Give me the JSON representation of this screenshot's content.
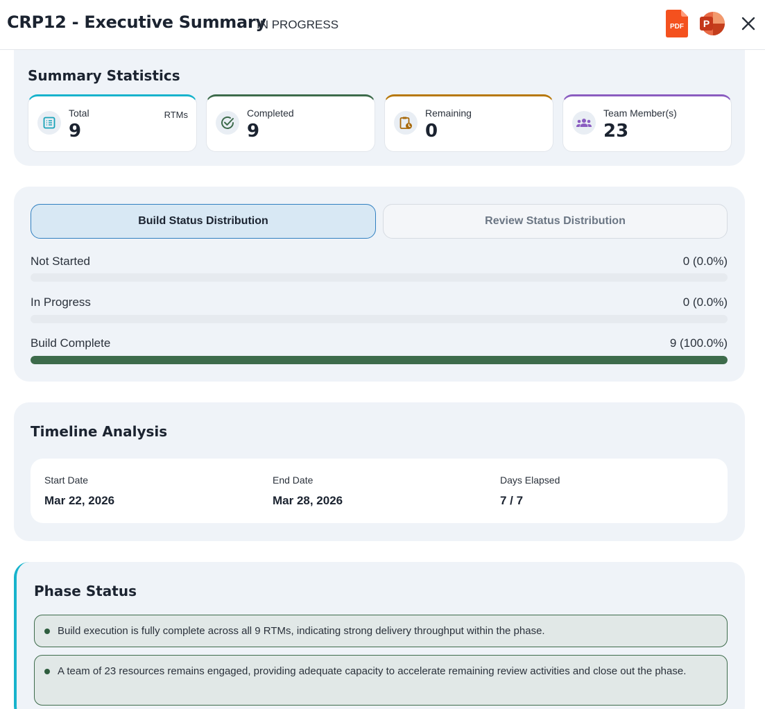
{
  "header": {
    "title": "CRP12 - Executive Summary",
    "status": "IN PROGRESS",
    "pdf_icon_text": "PDF",
    "ppt_icon_text": "P"
  },
  "summary": {
    "title": "Summary Statistics",
    "cards": [
      {
        "label": "Total",
        "value": "9",
        "unit": "RTMs",
        "icon": "list-icon",
        "accent": "#17b3cc"
      },
      {
        "label": "Completed",
        "value": "9",
        "icon": "check-circle-icon",
        "accent": "#3d6b4b"
      },
      {
        "label": "Remaining",
        "value": "0",
        "icon": "clipboard-clock-icon",
        "accent": "#b7780a"
      },
      {
        "label": "Team Member(s)",
        "value": "23",
        "icon": "team-icon",
        "accent": "#8a5cc0"
      }
    ]
  },
  "distribution": {
    "tabs": [
      "Build Status Distribution",
      "Review Status Distribution"
    ],
    "active_tab": 0,
    "rows": [
      {
        "label": "Not Started",
        "value": "0 (0.0%)",
        "fraction": 0
      },
      {
        "label": "In Progress",
        "value": "0 (0.0%)",
        "fraction": 0
      },
      {
        "label": "Build Complete",
        "value": "9 (100.0%)",
        "fraction": 1
      }
    ]
  },
  "timeline": {
    "title": "Timeline Analysis",
    "start_label": "Start Date",
    "start_value": "Mar 22, 2026",
    "end_label": "End Date",
    "end_value": "Mar 28, 2026",
    "days_label": "Days Elapsed",
    "days_value": "7 / 7"
  },
  "phase": {
    "title": "Phase Status",
    "bullets": [
      "Build execution is fully complete across all 9 RTMs, indicating strong delivery throughput within the phase.",
      "A team of 23 resources remains engaged, providing adequate capacity to accelerate remaining review activities and close out the phase."
    ]
  },
  "colors": {
    "accent_teal": "#17b3cc",
    "accent_green": "#3d6b4b",
    "accent_amber": "#b7780a",
    "accent_purple": "#8a5cc0",
    "pdf_orange": "#f4511e",
    "ppt_red": "#d04423"
  }
}
